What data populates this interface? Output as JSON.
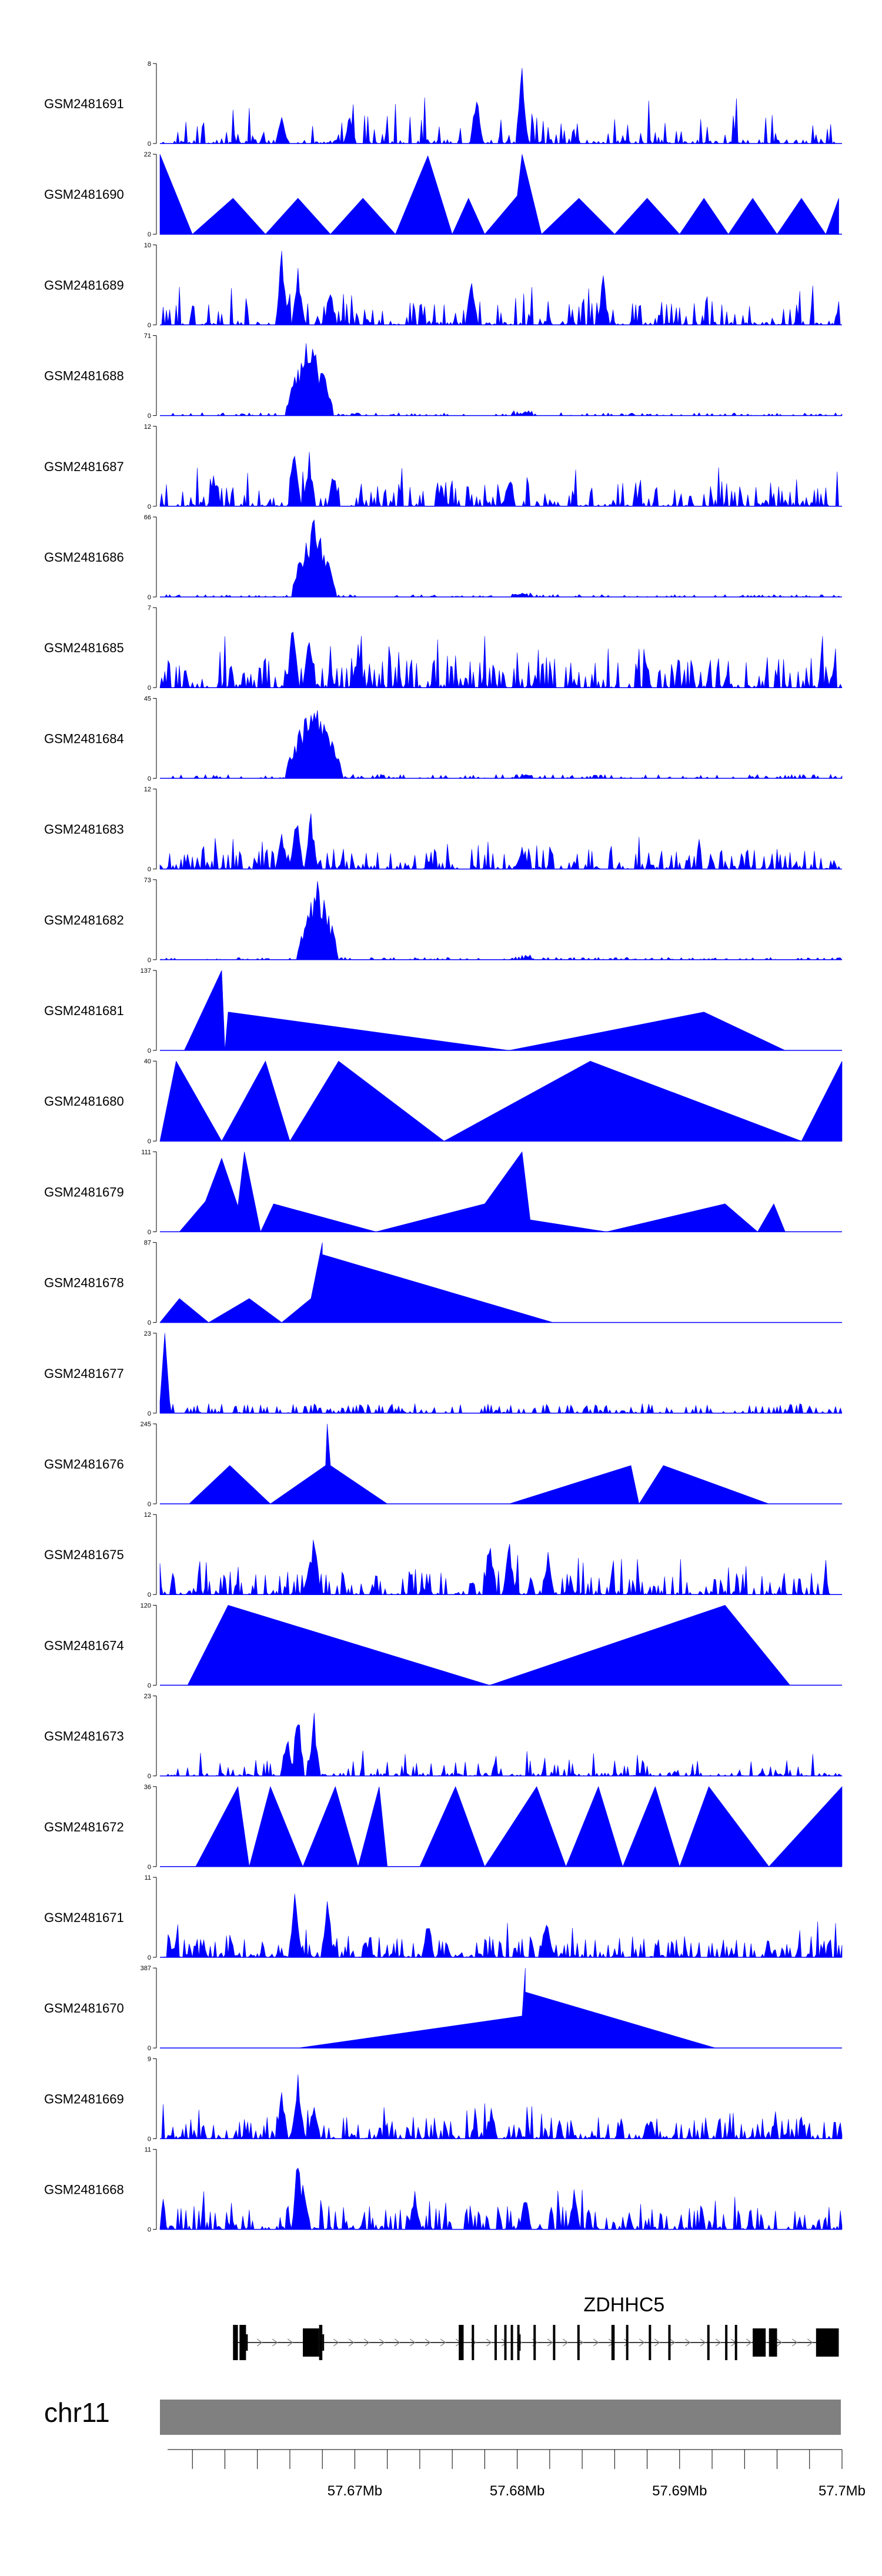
{
  "figure": {
    "chromosome": "chr11",
    "gene_name": "ZDHHC5",
    "fill_color": "#0000FF",
    "axis_color": "#000000",
    "ideogram_color": "#808080"
  },
  "chart_data": {
    "type": "area",
    "title": "",
    "xlabel": "",
    "ylabel": "",
    "x_range_mb": [
      57.658,
      57.7
    ],
    "x_ticks": [
      {
        "value": 57.66,
        "label": ""
      },
      {
        "value": 57.662,
        "label": ""
      },
      {
        "value": 57.664,
        "label": ""
      },
      {
        "value": 57.666,
        "label": ""
      },
      {
        "value": 57.668,
        "label": ""
      },
      {
        "value": 57.67,
        "label": "57.67Mb"
      },
      {
        "value": 57.672,
        "label": ""
      },
      {
        "value": 57.674,
        "label": ""
      },
      {
        "value": 57.676,
        "label": ""
      },
      {
        "value": 57.678,
        "label": ""
      },
      {
        "value": 57.68,
        "label": "57.68Mb"
      },
      {
        "value": 57.682,
        "label": ""
      },
      {
        "value": 57.684,
        "label": ""
      },
      {
        "value": 57.686,
        "label": ""
      },
      {
        "value": 57.688,
        "label": ""
      },
      {
        "value": 57.69,
        "label": "57.69Mb"
      },
      {
        "value": 57.692,
        "label": ""
      },
      {
        "value": 57.694,
        "label": ""
      },
      {
        "value": 57.696,
        "label": ""
      },
      {
        "value": 57.698,
        "label": ""
      },
      {
        "value": 57.7,
        "label": "57.7Mb"
      }
    ],
    "series": [
      {
        "name": "GSM2481691",
        "ymin": "0",
        "ymax": "8",
        "style": "noise",
        "density": 0.16,
        "baseline": 0.05,
        "peak": 0.55,
        "bumps": [
          [
            57.6655,
            0.35
          ],
          [
            57.6697,
            0.45
          ],
          [
            57.6775,
            0.7
          ],
          [
            57.6803,
            1.0
          ]
        ]
      },
      {
        "name": "GSM2481690",
        "ymin": "0",
        "ymax": "22",
        "style": "segments",
        "segments": [
          [
            57.658,
            1.0
          ],
          [
            57.66,
            0.0
          ],
          [
            57.6625,
            0.45
          ],
          [
            57.6645,
            0.0
          ],
          [
            57.6665,
            0.45
          ],
          [
            57.6685,
            0.0
          ],
          [
            57.6705,
            0.45
          ],
          [
            57.6725,
            0.0
          ],
          [
            57.6745,
            0.98
          ],
          [
            57.676,
            0.0
          ],
          [
            57.677,
            0.45
          ],
          [
            57.678,
            0.0
          ],
          [
            57.68,
            0.48
          ],
          [
            57.6803,
            1.0
          ],
          [
            57.6815,
            0.0
          ],
          [
            57.6838,
            0.45
          ],
          [
            57.686,
            0.0
          ],
          [
            57.688,
            0.45
          ],
          [
            57.69,
            0.0
          ],
          [
            57.6915,
            0.45
          ],
          [
            57.693,
            0.0
          ],
          [
            57.6945,
            0.45
          ],
          [
            57.696,
            0.0
          ],
          [
            57.6975,
            0.45
          ],
          [
            57.699,
            0.0
          ],
          [
            57.6998,
            0.45
          ],
          [
            57.6998,
            0.0
          ]
        ]
      },
      {
        "name": "GSM2481689",
        "ymin": "0",
        "ymax": "10",
        "style": "noise",
        "density": 0.3,
        "baseline": 0.05,
        "peak": 0.45,
        "bumps": [
          [
            57.6665,
            0.8
          ],
          [
            57.6655,
            0.95
          ],
          [
            57.6685,
            0.55
          ],
          [
            57.6772,
            0.6
          ],
          [
            57.6853,
            0.65
          ]
        ]
      },
      {
        "name": "GSM2481688",
        "ymin": "0",
        "ymax": "71",
        "style": "peak",
        "center": 57.6672,
        "width": 0.0015,
        "noise": 0.04
      },
      {
        "name": "GSM2481687",
        "ymin": "0",
        "ymax": "12",
        "style": "noise",
        "density": 0.28,
        "baseline": 0.05,
        "peak": 0.45,
        "bumps": [
          [
            57.6663,
            0.95
          ],
          [
            57.6672,
            0.75
          ],
          [
            57.6687,
            0.5
          ],
          [
            57.6795,
            0.45
          ]
        ]
      },
      {
        "name": "GSM2481686",
        "ymin": "0",
        "ymax": "66",
        "style": "peak",
        "center": 57.6675,
        "width": 0.0014,
        "noise": 0.03
      },
      {
        "name": "GSM2481685",
        "ymin": "0",
        "ymax": "7",
        "style": "noise",
        "density": 0.4,
        "baseline": 0.05,
        "peak": 0.6,
        "bumps": [
          [
            57.6662,
            1.0
          ],
          [
            57.6672,
            0.85
          ],
          [
            57.6702,
            0.6
          ]
        ]
      },
      {
        "name": "GSM2481684",
        "ymin": "0",
        "ymax": "45",
        "style": "peak",
        "center": 57.6675,
        "width": 0.0018,
        "noise": 0.05
      },
      {
        "name": "GSM2481683",
        "ymin": "0",
        "ymax": "12",
        "style": "noise",
        "density": 0.3,
        "baseline": 0.06,
        "peak": 0.35,
        "bumps": [
          [
            57.6664,
            0.85
          ],
          [
            57.6673,
            0.75
          ],
          [
            57.6655,
            0.55
          ],
          [
            57.6803,
            0.35
          ]
        ]
      },
      {
        "name": "GSM2481682",
        "ymin": "0",
        "ymax": "73",
        "style": "peak",
        "center": 57.6677,
        "width": 0.0013,
        "noise": 0.03
      },
      {
        "name": "GSM2481681",
        "ymin": "0",
        "ymax": "137",
        "style": "segments",
        "segments": [
          [
            57.6595,
            0.0
          ],
          [
            57.6618,
            1.0
          ],
          [
            57.662,
            0.0
          ],
          [
            57.6622,
            0.48
          ],
          [
            57.6795,
            0.0
          ],
          [
            57.6915,
            0.48
          ],
          [
            57.6965,
            0.0
          ]
        ]
      },
      {
        "name": "GSM2481680",
        "ymin": "0",
        "ymax": "40",
        "style": "segments",
        "segments": [
          [
            57.658,
            0.0
          ],
          [
            57.659,
            1.0
          ],
          [
            57.6618,
            0.0
          ],
          [
            57.6645,
            1.0
          ],
          [
            57.666,
            0.0
          ],
          [
            57.669,
            1.0
          ],
          [
            57.6755,
            0.0
          ],
          [
            57.6845,
            1.0
          ],
          [
            57.6975,
            0.0
          ],
          [
            57.7,
            1.0
          ],
          [
            57.7,
            0.0
          ]
        ]
      },
      {
        "name": "GSM2481679",
        "ymin": "0",
        "ymax": "111",
        "style": "segments",
        "segments": [
          [
            57.6592,
            0.0
          ],
          [
            57.6608,
            0.38
          ],
          [
            57.6618,
            0.92
          ],
          [
            57.6628,
            0.32
          ],
          [
            57.6632,
            1.0
          ],
          [
            57.6642,
            0.0
          ],
          [
            57.665,
            0.35
          ],
          [
            57.6713,
            0.0
          ],
          [
            57.678,
            0.35
          ],
          [
            57.6803,
            1.0
          ],
          [
            57.6808,
            0.15
          ],
          [
            57.6855,
            0.0
          ],
          [
            57.6928,
            0.35
          ],
          [
            57.6948,
            0.0
          ],
          [
            57.6958,
            0.35
          ],
          [
            57.6965,
            0.0
          ],
          [
            57.6982,
            0.0
          ]
        ]
      },
      {
        "name": "GSM2481678",
        "ymin": "0",
        "ymax": "87",
        "style": "segments",
        "segments": [
          [
            57.658,
            0.0
          ],
          [
            57.6592,
            0.3
          ],
          [
            57.661,
            0.0
          ],
          [
            57.6635,
            0.3
          ],
          [
            57.6655,
            0.0
          ],
          [
            57.6673,
            0.3
          ],
          [
            57.668,
            1.0
          ],
          [
            57.668,
            0.85
          ],
          [
            57.6822,
            0.0
          ]
        ]
      },
      {
        "name": "GSM2481677",
        "ymin": "0",
        "ymax": "23",
        "style": "spike",
        "center": 57.6583,
        "noise": 0.06
      },
      {
        "name": "GSM2481676",
        "ymin": "0",
        "ymax": "245",
        "style": "segments",
        "segments": [
          [
            57.6598,
            0.0
          ],
          [
            57.6623,
            0.48
          ],
          [
            57.6648,
            0.0
          ],
          [
            57.6682,
            0.48
          ],
          [
            57.6683,
            1.0
          ],
          [
            57.6685,
            0.48
          ],
          [
            57.672,
            0.0
          ],
          [
            57.6795,
            0.0
          ],
          [
            57.687,
            0.48
          ],
          [
            57.6875,
            0.0
          ],
          [
            57.689,
            0.48
          ],
          [
            57.6955,
            0.0
          ]
        ]
      },
      {
        "name": "GSM2481675",
        "ymin": "0",
        "ymax": "12",
        "style": "noise",
        "density": 0.3,
        "baseline": 0.05,
        "peak": 0.45,
        "bumps": [
          [
            57.6675,
            0.95
          ],
          [
            57.6672,
            0.55
          ],
          [
            57.6783,
            0.85
          ],
          [
            57.6795,
            0.7
          ],
          [
            57.6819,
            0.6
          ]
        ],
        "xmax": 57.6993
      },
      {
        "name": "GSM2481674",
        "ymin": "0",
        "ymax": "120",
        "style": "segments",
        "segments": [
          [
            57.6597,
            0.0
          ],
          [
            57.6622,
            1.0
          ],
          [
            57.6783,
            0.0
          ],
          [
            57.6928,
            1.0
          ],
          [
            57.6968,
            0.0
          ]
        ]
      },
      {
        "name": "GSM2481673",
        "ymin": "0",
        "ymax": "23",
        "style": "noise",
        "density": 0.18,
        "baseline": 0.04,
        "peak": 0.3,
        "bumps": [
          [
            57.6665,
            0.95
          ],
          [
            57.6675,
            0.8
          ],
          [
            57.6658,
            0.6
          ]
        ]
      },
      {
        "name": "GSM2481672",
        "ymin": "0",
        "ymax": "36",
        "style": "segments",
        "segments": [
          [
            57.6602,
            0.0
          ],
          [
            57.6628,
            1.0
          ],
          [
            57.6635,
            0.0
          ],
          [
            57.6648,
            1.0
          ],
          [
            57.6668,
            0.0
          ],
          [
            57.6688,
            1.0
          ],
          [
            57.6702,
            0.0
          ],
          [
            57.6715,
            1.0
          ],
          [
            57.672,
            0.0
          ],
          [
            57.674,
            0.0
          ],
          [
            57.6762,
            1.0
          ],
          [
            57.678,
            0.0
          ],
          [
            57.6812,
            1.0
          ],
          [
            57.683,
            0.0
          ],
          [
            57.685,
            1.0
          ],
          [
            57.6865,
            0.0
          ],
          [
            57.6885,
            1.0
          ],
          [
            57.69,
            0.0
          ],
          [
            57.6918,
            1.0
          ],
          [
            57.6955,
            0.0
          ],
          [
            57.7,
            1.0
          ],
          [
            57.7,
            0.0
          ]
        ]
      },
      {
        "name": "GSM2481671",
        "ymin": "0",
        "ymax": "11",
        "style": "noise",
        "density": 0.35,
        "baseline": 0.05,
        "peak": 0.4,
        "bumps": [
          [
            57.6663,
            0.95
          ],
          [
            57.6683,
            0.85
          ],
          [
            57.6745,
            0.55
          ],
          [
            57.6818,
            0.6
          ]
        ]
      },
      {
        "name": "GSM2481670",
        "ymin": "0",
        "ymax": "387",
        "style": "segments",
        "segments": [
          [
            57.6665,
            0.0
          ],
          [
            57.6803,
            0.4
          ],
          [
            57.6805,
            1.0
          ],
          [
            57.6805,
            0.7
          ],
          [
            57.6922,
            0.0
          ]
        ]
      },
      {
        "name": "GSM2481669",
        "ymin": "0",
        "ymax": "9",
        "style": "noise",
        "density": 0.4,
        "baseline": 0.05,
        "peak": 0.4,
        "bumps": [
          [
            57.6665,
            0.95
          ],
          [
            57.6655,
            0.65
          ],
          [
            57.6675,
            0.55
          ],
          [
            57.6784,
            0.45
          ]
        ]
      },
      {
        "name": "GSM2481668",
        "ymin": "0",
        "ymax": "11",
        "style": "noise",
        "density": 0.35,
        "baseline": 0.05,
        "peak": 0.45,
        "bumps": [
          [
            57.6665,
            1.0
          ],
          [
            57.6668,
            0.75
          ],
          [
            57.6737,
            0.5
          ],
          [
            57.6805,
            0.45
          ],
          [
            57.6835,
            0.55
          ]
        ]
      }
    ],
    "gene_model": {
      "name": "ZDHHC5",
      "strand": "+",
      "start": 57.6625,
      "end": 57.6998,
      "exons": [
        [
          57.6625,
          57.6628
        ],
        [
          57.6629,
          57.6633
        ],
        [
          57.6668,
          57.6678
        ],
        [
          57.6678,
          57.668
        ],
        [
          57.6764,
          57.6767
        ],
        [
          57.6772,
          57.6773
        ],
        [
          57.6786,
          57.6787
        ],
        [
          57.6792,
          57.6793
        ],
        [
          57.6796,
          57.6797
        ],
        [
          57.68,
          57.6801
        ],
        [
          57.681,
          57.6811
        ],
        [
          57.6822,
          57.6823
        ],
        [
          57.6837,
          57.6838
        ],
        [
          57.6858,
          57.686
        ],
        [
          57.6867,
          57.6868
        ],
        [
          57.6881,
          57.6882
        ],
        [
          57.6893,
          57.6894
        ],
        [
          57.6917,
          57.6918
        ],
        [
          57.6928,
          57.6929
        ],
        [
          57.6934,
          57.6935
        ],
        [
          57.6945,
          57.6953
        ],
        [
          57.6955,
          57.696
        ],
        [
          57.6984,
          57.6998
        ]
      ],
      "thin_exons": [
        [
          57.6633,
          57.6634
        ],
        [
          57.668,
          57.6681
        ],
        [
          57.6801,
          57.6802
        ]
      ]
    }
  }
}
